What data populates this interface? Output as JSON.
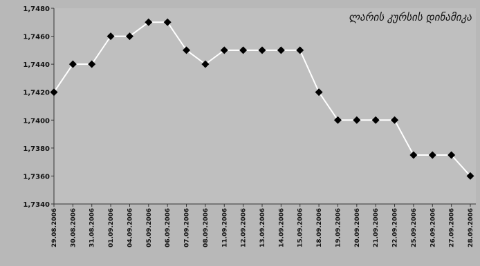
{
  "colors": {
    "background": "#b8b8b8",
    "plot_area": "#bfbfbf",
    "line": "#ffffff",
    "marker": "#000000",
    "text": "#111111"
  },
  "chart_data": {
    "type": "line",
    "title": "ლარის კურსის დინამიკა",
    "xlabel": "",
    "ylabel": "",
    "ylim": [
      1.734,
      1.748
    ],
    "yticks": [
      "1,7480",
      "1,7460",
      "1,7440",
      "1,7420",
      "1,7400",
      "1,7380",
      "1,7360",
      "1,7340"
    ],
    "ytick_values": [
      1.748,
      1.746,
      1.744,
      1.742,
      1.74,
      1.738,
      1.736,
      1.734
    ],
    "categories": [
      "29.08.2006",
      "30.08.2006",
      "31.08.2006",
      "01.09.2006",
      "04.09.2006",
      "05.09.2006",
      "06.09.2006",
      "07.09.2006",
      "08.09.2006",
      "11.09.2006",
      "12.09.2006",
      "13.09.2006",
      "14.09.2006",
      "15.09.2006",
      "18.09.2006",
      "19.09.2006",
      "20.09.2006",
      "21.09.2006",
      "22.09.2006",
      "25.09.2006",
      "26.09.2006",
      "27.09.2006",
      "28.09.2006"
    ],
    "series": [
      {
        "values": [
          1.742,
          1.744,
          1.744,
          1.746,
          1.746,
          1.747,
          1.747,
          1.745,
          1.744,
          1.745,
          1.745,
          1.745,
          1.745,
          1.745,
          1.742,
          1.74,
          1.74,
          1.74,
          1.74,
          1.7375,
          1.7375,
          1.7375,
          1.736
        ]
      }
    ],
    "grid": false,
    "legend": "none"
  }
}
